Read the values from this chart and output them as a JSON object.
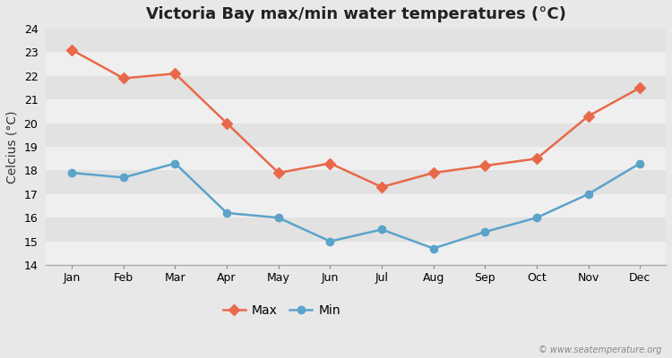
{
  "title": "Victoria Bay max/min water temperatures (°C)",
  "ylabel": "Celcius (°C)",
  "months": [
    "Jan",
    "Feb",
    "Mar",
    "Apr",
    "May",
    "Jun",
    "Jul",
    "Aug",
    "Sep",
    "Oct",
    "Nov",
    "Dec"
  ],
  "max_temps": [
    23.1,
    21.9,
    22.1,
    20.0,
    17.9,
    18.3,
    17.3,
    17.9,
    18.2,
    18.5,
    20.3,
    21.5
  ],
  "min_temps": [
    17.9,
    17.7,
    18.3,
    16.2,
    16.0,
    15.0,
    15.5,
    14.7,
    15.4,
    16.0,
    17.0,
    18.3
  ],
  "max_color": "#e8694a",
  "min_color": "#5ba3c9",
  "background_color": "#e8e8e8",
  "band_light": "#efefef",
  "band_dark": "#e2e2e2",
  "ylim": [
    14,
    24
  ],
  "yticks": [
    14,
    15,
    16,
    17,
    18,
    19,
    20,
    21,
    22,
    23,
    24
  ],
  "watermark": "© www.seatemperature.org",
  "title_fontsize": 13,
  "label_fontsize": 10,
  "tick_fontsize": 9,
  "legend_labels": [
    "Max",
    "Min"
  ],
  "max_marker": "D",
  "min_marker": "o",
  "marker_size": 6,
  "line_width": 1.8
}
